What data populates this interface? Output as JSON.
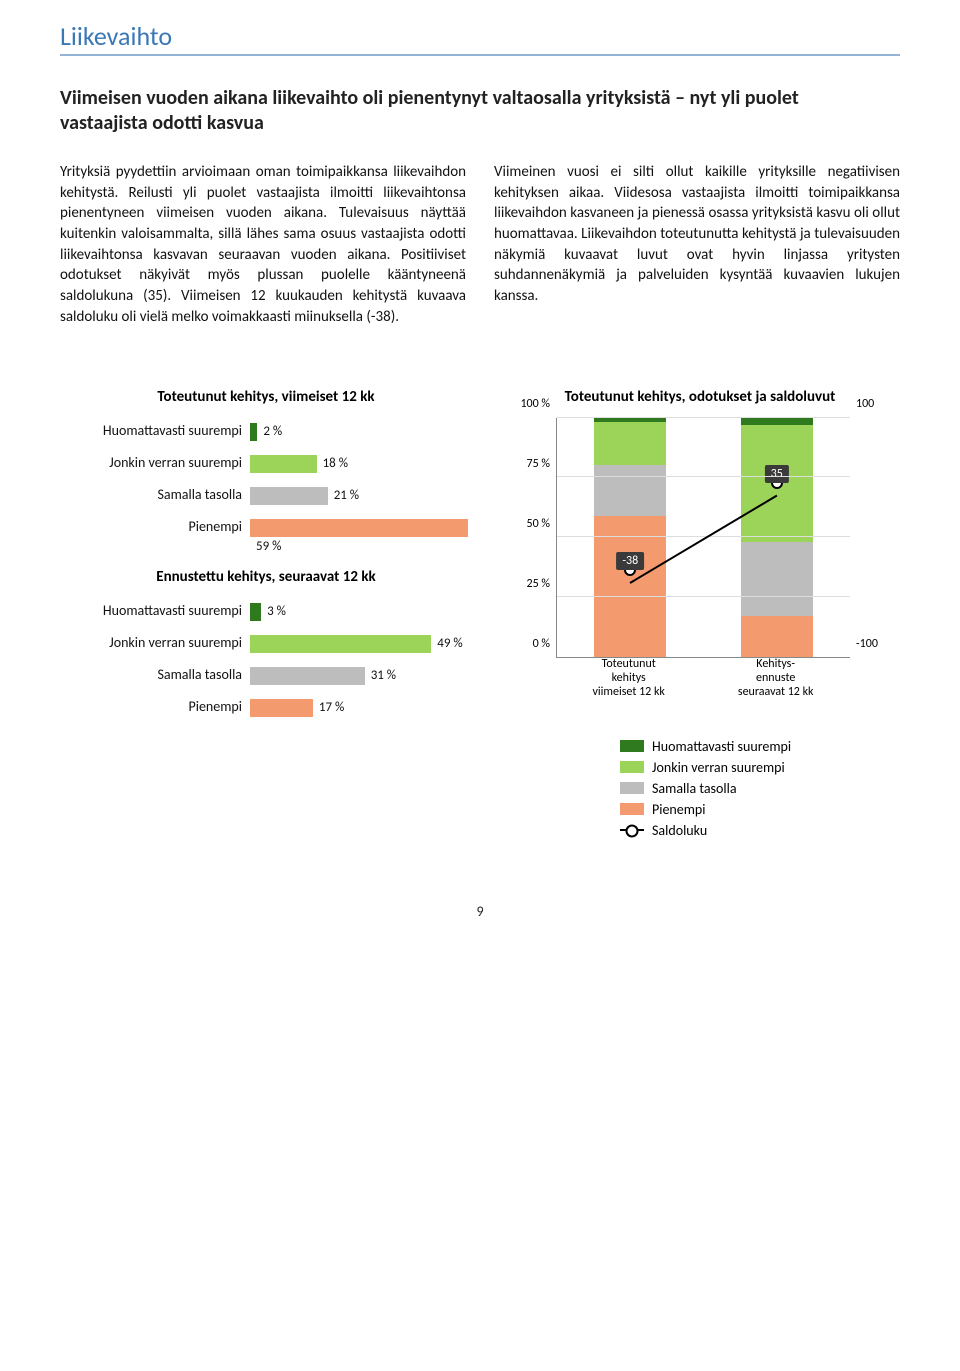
{
  "colors": {
    "accent_blue": "#3b77b5",
    "rule_blue": "#94b3d6",
    "dark_green": "#2f7a1e",
    "light_green": "#9cd45a",
    "gray": "#bdbdbd",
    "orange": "#f39a6e",
    "badge_bg": "#3a3a3a",
    "grid": "#dddddd",
    "text": "#111111"
  },
  "header": {
    "title": "Liikevaihto"
  },
  "subtitle": "Viimeisen vuoden aikana liikevaihto oli pienentynyt valtaosalla yrityksistä – nyt yli puolet vastaajista odotti kasvua",
  "body": {
    "left": "Yrityksiä pyydettiin arvioimaan oman toimipaikkansa liikevaihdon kehitystä. Reilusti yli puolet vastaajista ilmoitti liikevaihtonsa pienentyneen viimeisen vuoden aikana. Tulevaisuus näyttää kuitenkin valoisammalta, sillä lähes sama osuus vastaajista odotti liikevaihtonsa kasvavan seuraavan vuoden aikana. Positiiviset odotukset näkyivät myös plussan puolelle kääntyneenä saldolukuna (35). Viimeisen 12 kuukauden kehitystä kuvaava saldoluku oli vielä melko voimakkaasti miinuksella (-38).",
    "right": "Viimeinen vuosi ei silti ollut kaikille yrityksille negatiivisen kehityksen aikaa. Viidesosa vastaajista ilmoitti toimipaikkansa liikevaihdon kasvaneen ja pienessä osassa yrityksistä kasvu oli ollut huomattavaa. Liikevaihdon toteutunutta kehitystä ja tulevaisuuden näkymiä kuvaavat luvut ovat hyvin linjassa yritysten suhdannenäkymiä ja palveluiden kysyntää kuvaavien lukujen kanssa."
  },
  "hbar_past": {
    "title": "Toteutunut kehitys, viimeiset 12 kk",
    "max": 60,
    "rows": [
      {
        "label": "Huomattavasti suurempi",
        "value": 2,
        "pct": "2 %",
        "color": "#2f7a1e"
      },
      {
        "label": "Jonkin verran suurempi",
        "value": 18,
        "pct": "18 %",
        "color": "#9cd45a"
      },
      {
        "label": "Samalla tasolla",
        "value": 21,
        "pct": "21 %",
        "color": "#bdbdbd"
      },
      {
        "label": "Pienempi",
        "value": 59,
        "pct": "59 %",
        "color": "#f39a6e"
      }
    ]
  },
  "hbar_future": {
    "title": "Ennustettu kehitys, seuraavat 12 kk",
    "max": 60,
    "rows": [
      {
        "label": "Huomattavasti suurempi",
        "value": 3,
        "pct": "3 %",
        "color": "#2f7a1e"
      },
      {
        "label": "Jonkin verran suurempi",
        "value": 49,
        "pct": "49 %",
        "color": "#9cd45a"
      },
      {
        "label": "Samalla tasolla",
        "value": 31,
        "pct": "31 %",
        "color": "#bdbdbd"
      },
      {
        "label": "Pienempi",
        "value": 17,
        "pct": "17 %",
        "color": "#f39a6e"
      }
    ]
  },
  "stacked": {
    "title": "Toteutunut kehitys, odotukset ja saldoluvut",
    "ylim": [
      0,
      100
    ],
    "yticks": [
      0,
      25,
      50,
      75,
      100
    ],
    "ytick_labels": [
      "0 %",
      "25 %",
      "50 %",
      "75 %",
      "100 %"
    ],
    "right_ticks": [
      -100,
      100
    ],
    "right_tick_labels": [
      "-100",
      "100"
    ],
    "xlabels": [
      "Toteutunut\nkehitys\nviimeiset 12 kk",
      "Kehitys-\nennuste\nseuraavat 12 kk"
    ],
    "columns": [
      {
        "segments": [
          {
            "value": 59,
            "color": "#f39a6e"
          },
          {
            "value": 21,
            "color": "#bdbdbd"
          },
          {
            "value": 18,
            "color": "#9cd45a"
          },
          {
            "value": 2,
            "color": "#2f7a1e"
          }
        ],
        "saldo": -38,
        "saldo_label": "-38"
      },
      {
        "segments": [
          {
            "value": 17,
            "color": "#f39a6e"
          },
          {
            "value": 31,
            "color": "#bdbdbd"
          },
          {
            "value": 49,
            "color": "#9cd45a"
          },
          {
            "value": 3,
            "color": "#2f7a1e"
          }
        ],
        "saldo": 35,
        "saldo_label": "35"
      }
    ]
  },
  "legend": {
    "items": [
      {
        "type": "sw",
        "color": "#2f7a1e",
        "label": "Huomattavasti suurempi"
      },
      {
        "type": "sw",
        "color": "#9cd45a",
        "label": "Jonkin verran suurempi"
      },
      {
        "type": "sw",
        "color": "#bdbdbd",
        "label": "Samalla tasolla"
      },
      {
        "type": "sw",
        "color": "#f39a6e",
        "label": "Pienempi"
      },
      {
        "type": "line",
        "label": "Saldoluku"
      }
    ]
  },
  "page_number": "9"
}
